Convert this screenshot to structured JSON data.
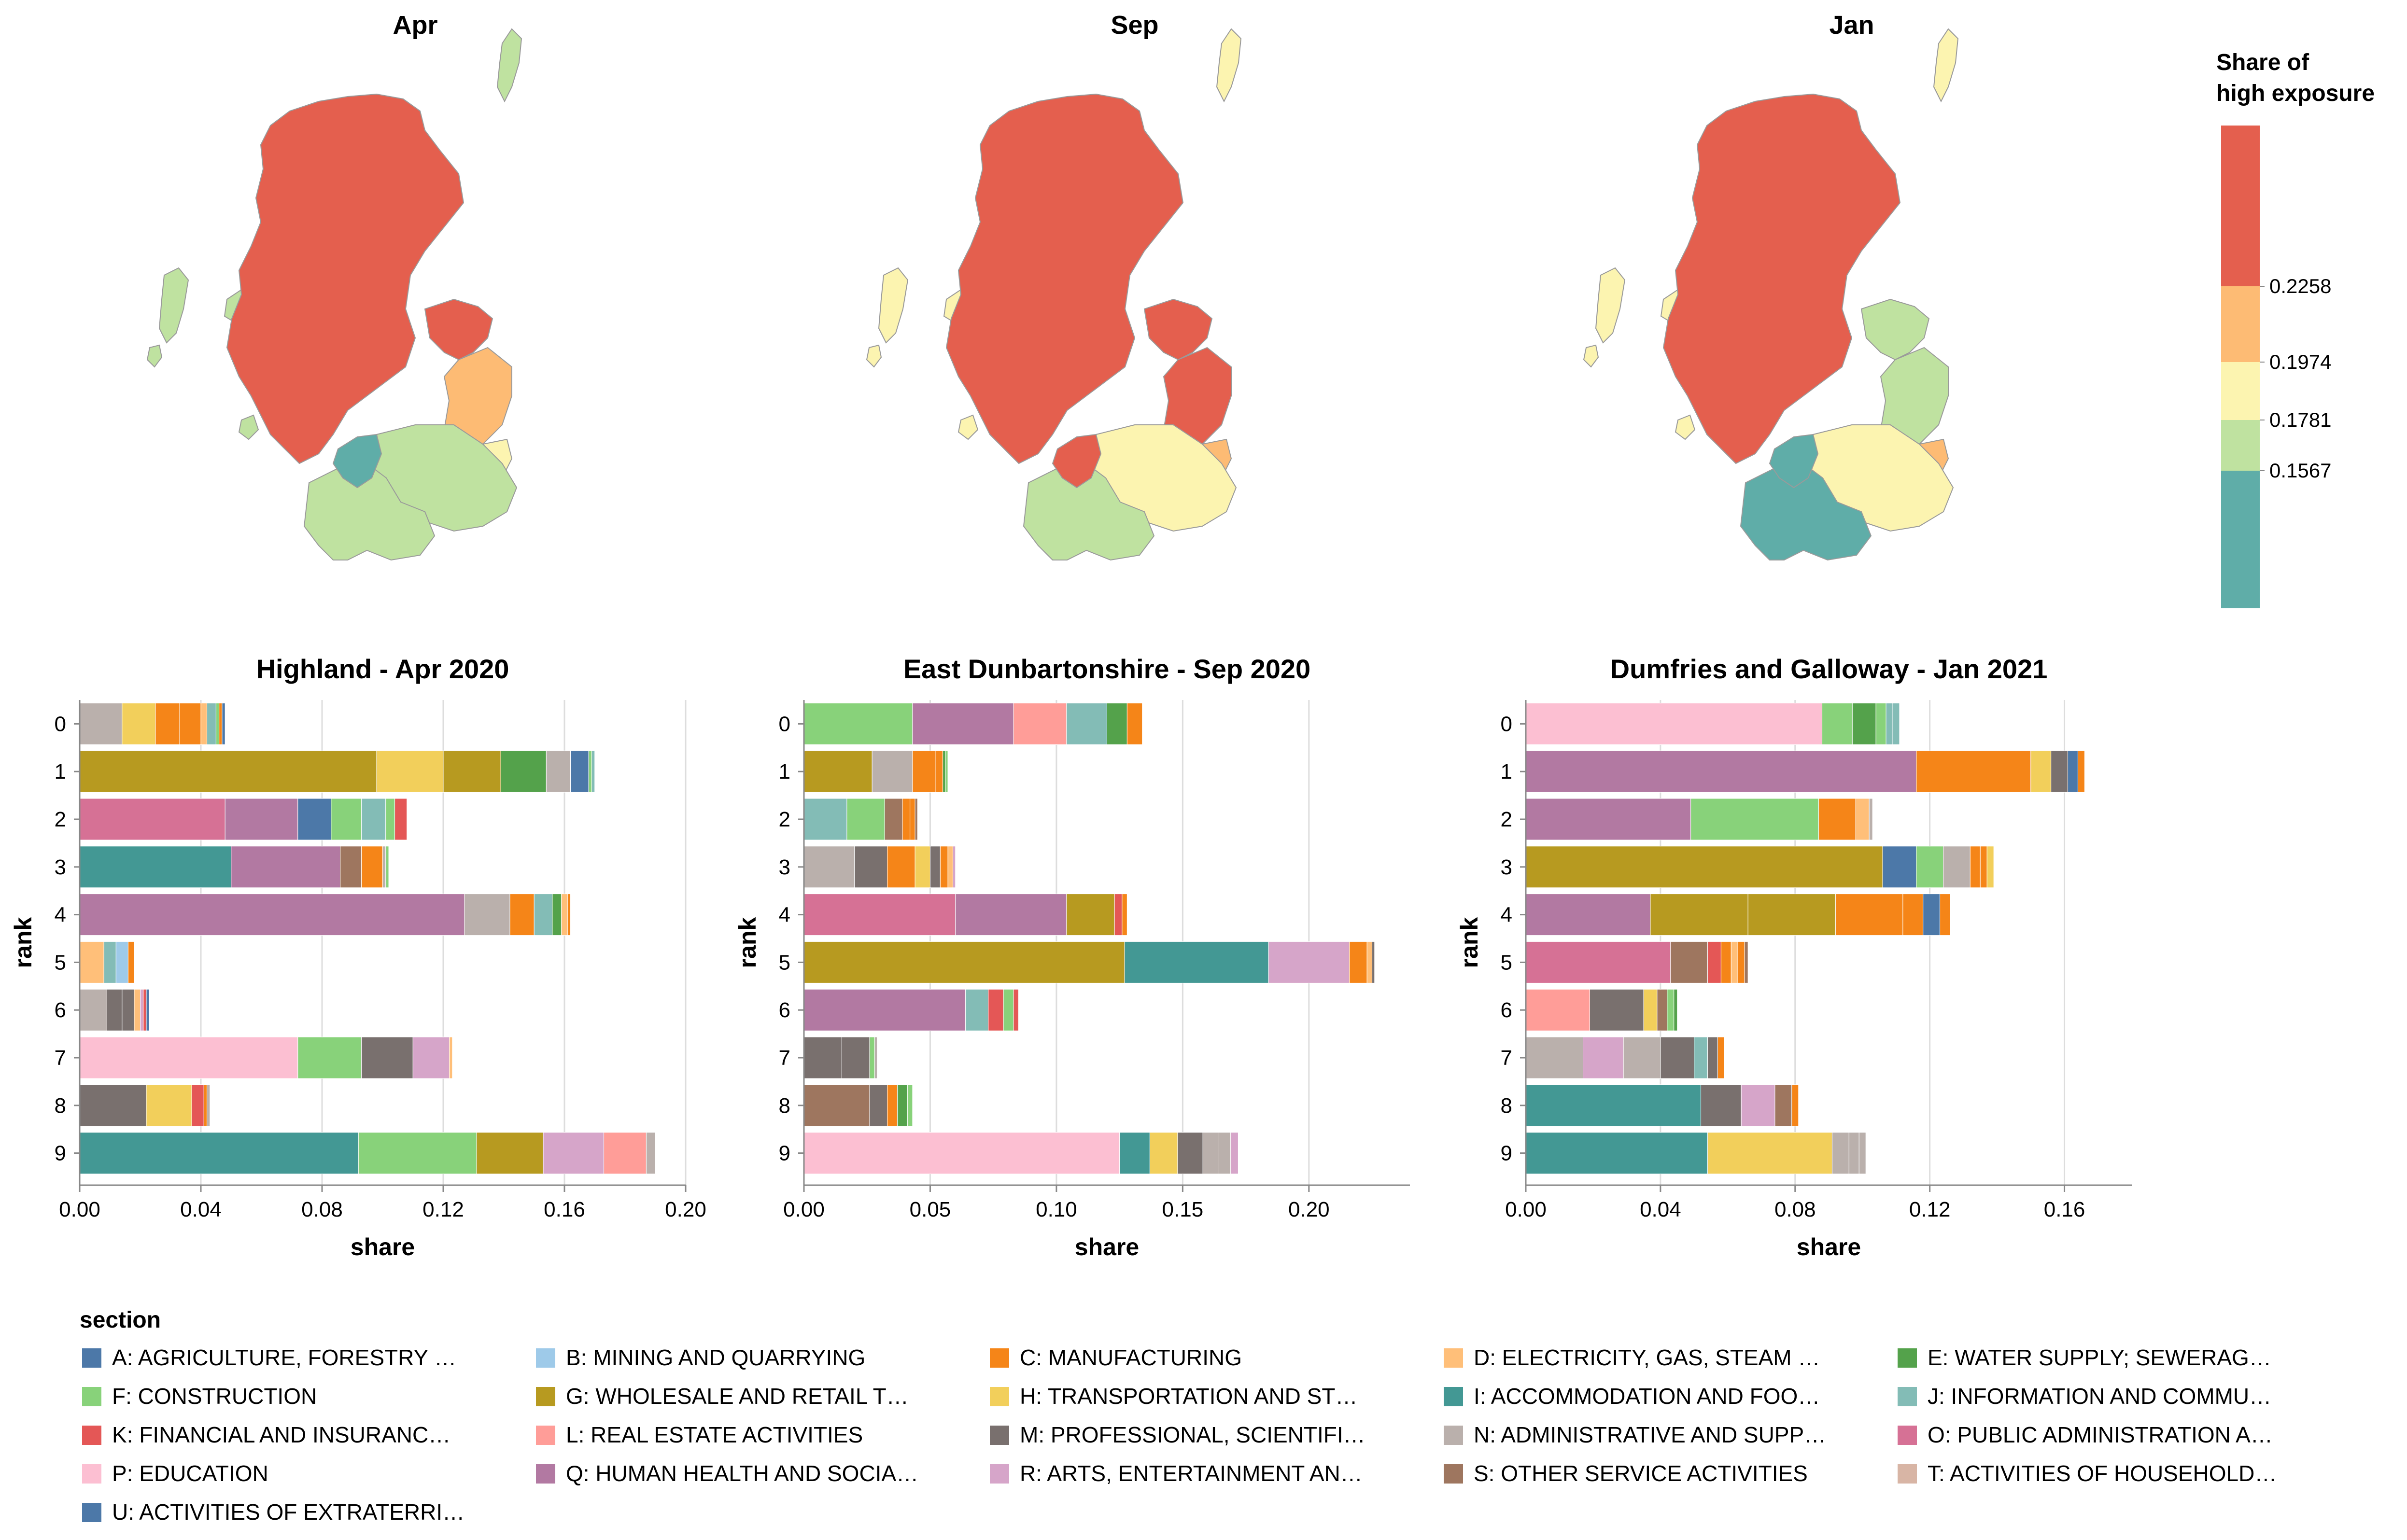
{
  "colors": {
    "A": "#4c78a8",
    "B": "#9ecae9",
    "C": "#f58518",
    "D": "#ffbf79",
    "E": "#54a24b",
    "F": "#88d27a",
    "G": "#b79a20",
    "H": "#f2cf5b",
    "I": "#439894",
    "J": "#83bcb6",
    "K": "#e45756",
    "L": "#ff9d98",
    "M": "#79706e",
    "N": "#bab0ac",
    "O": "#d67195",
    "P": "#fcbfd2",
    "Q": "#b279a2",
    "R": "#d6a5c9",
    "S": "#9e765f",
    "T": "#d8b5a5",
    "U": "#4c78a8",
    "map_grey": "#9a9a9a",
    "grid": "#dddddd",
    "axis": "#888888"
  },
  "maps": [
    {
      "title": "Apr",
      "palette": [
        "#e45f4e",
        "#e45f4e",
        "#fdbb74",
        "#fcf4b0",
        "#bfe2a0",
        "#bfe2a0",
        "#5fada8"
      ]
    },
    {
      "title": "Sep",
      "palette": [
        "#e45f4e",
        "#e45f4e",
        "#e45f4e",
        "#fdbb74",
        "#fcf4b0",
        "#bfe2a0",
        "#e45f4e"
      ]
    },
    {
      "title": "Jan",
      "palette": [
        "#e45f4e",
        "#bfe2a0",
        "#bfe2a0",
        "#fdbb74",
        "#fcf4b0",
        "#5fada8",
        "#5fada8"
      ]
    }
  ],
  "legend_color": {
    "title_lines": [
      "Share of",
      "high exposure"
    ],
    "bins": [
      "#e45f4e",
      "#fdbb74",
      "#fcf4b0",
      "#bfe2a0",
      "#5fada8"
    ],
    "labels": [
      "0.2258",
      "0.1974",
      "0.1781",
      "0.1567"
    ]
  },
  "legend_section": {
    "title": "section",
    "items": [
      {
        "key": "A",
        "label": "A: AGRICULTURE, FORESTRY …"
      },
      {
        "key": "B",
        "label": "B: MINING AND QUARRYING"
      },
      {
        "key": "C",
        "label": "C: MANUFACTURING"
      },
      {
        "key": "D",
        "label": "D: ELECTRICITY, GAS, STEAM …"
      },
      {
        "key": "E",
        "label": "E: WATER SUPPLY; SEWERAG…"
      },
      {
        "key": "F",
        "label": "F: CONSTRUCTION"
      },
      {
        "key": "G",
        "label": "G: WHOLESALE AND RETAIL T…"
      },
      {
        "key": "H",
        "label": "H: TRANSPORTATION AND ST…"
      },
      {
        "key": "I",
        "label": "I: ACCOMMODATION AND FOO…"
      },
      {
        "key": "J",
        "label": "J: INFORMATION AND COMMU…"
      },
      {
        "key": "K",
        "label": "K: FINANCIAL AND INSURANC…"
      },
      {
        "key": "L",
        "label": "L: REAL ESTATE ACTIVITIES"
      },
      {
        "key": "M",
        "label": "M: PROFESSIONAL, SCIENTIFI…"
      },
      {
        "key": "N",
        "label": "N: ADMINISTRATIVE AND SUPP…"
      },
      {
        "key": "O",
        "label": "O: PUBLIC ADMINISTRATION A…"
      },
      {
        "key": "P",
        "label": "P: EDUCATION"
      },
      {
        "key": "Q",
        "label": "Q: HUMAN HEALTH AND SOCIA…"
      },
      {
        "key": "R",
        "label": "R: ARTS, ENTERTAINMENT AN…"
      },
      {
        "key": "S",
        "label": "S: OTHER SERVICE ACTIVITIES"
      },
      {
        "key": "T",
        "label": "T: ACTIVITIES OF HOUSEHOLD…"
      },
      {
        "key": "U",
        "label": "U: ACTIVITIES OF EXTRATERRI…"
      }
    ]
  },
  "chart_data": [
    {
      "type": "bar",
      "title": "Highland - Apr 2020",
      "xlabel": "share",
      "ylabel": "rank",
      "xlim": [
        0,
        0.2
      ],
      "xticks": [
        0,
        0.04,
        0.08,
        0.12,
        0.16,
        0.2
      ],
      "xtick_labels": [
        "0.00",
        "0.04",
        "0.08",
        "0.12",
        "0.16",
        "0.20"
      ],
      "categories": [
        "0",
        "1",
        "2",
        "3",
        "4",
        "5",
        "6",
        "7",
        "8",
        "9"
      ],
      "rows": [
        [
          [
            "N",
            0.014
          ],
          [
            "H",
            0.011
          ],
          [
            "C",
            0.008
          ],
          [
            "C",
            0.007
          ],
          [
            "D",
            0.002
          ],
          [
            "J",
            0.003
          ],
          [
            "F",
            0.001
          ],
          [
            "C",
            0.001
          ],
          [
            "A",
            0.001
          ]
        ],
        [
          [
            "G",
            0.098
          ],
          [
            "H",
            0.022
          ],
          [
            "G",
            0.019
          ],
          [
            "E",
            0.015
          ],
          [
            "N",
            0.008
          ],
          [
            "A",
            0.006
          ],
          [
            "F",
            0.001
          ],
          [
            "J",
            0.001
          ]
        ],
        [
          [
            "O",
            0.048
          ],
          [
            "Q",
            0.024
          ],
          [
            "A",
            0.011
          ],
          [
            "F",
            0.01
          ],
          [
            "J",
            0.008
          ],
          [
            "F",
            0.003
          ],
          [
            "K",
            0.004
          ]
        ],
        [
          [
            "I",
            0.05
          ],
          [
            "Q",
            0.036
          ],
          [
            "S",
            0.007
          ],
          [
            "C",
            0.007
          ],
          [
            "N",
            0.001
          ],
          [
            "F",
            0.001
          ]
        ],
        [
          [
            "Q",
            0.127
          ],
          [
            "N",
            0.015
          ],
          [
            "C",
            0.008
          ],
          [
            "J",
            0.006
          ],
          [
            "E",
            0.003
          ],
          [
            "D",
            0.002
          ],
          [
            "C",
            0.001
          ]
        ],
        [
          [
            "D",
            0.008
          ],
          [
            "J",
            0.004
          ],
          [
            "B",
            0.004
          ],
          [
            "C",
            0.002
          ]
        ],
        [
          [
            "N",
            0.009
          ],
          [
            "M",
            0.005
          ],
          [
            "M",
            0.004
          ],
          [
            "D",
            0.002
          ],
          [
            "R",
            0.001
          ],
          [
            "K",
            0.001
          ],
          [
            "A",
            0.001
          ]
        ],
        [
          [
            "P",
            0.072
          ],
          [
            "F",
            0.021
          ],
          [
            "M",
            0.017
          ],
          [
            "R",
            0.012
          ],
          [
            "D",
            0.001
          ]
        ],
        [
          [
            "M",
            0.022
          ],
          [
            "H",
            0.015
          ],
          [
            "K",
            0.004
          ],
          [
            "C",
            0.001
          ],
          [
            "N",
            0.001
          ]
        ],
        [
          [
            "I",
            0.092
          ],
          [
            "F",
            0.039
          ],
          [
            "G",
            0.022
          ],
          [
            "R",
            0.02
          ],
          [
            "L",
            0.014
          ],
          [
            "N",
            0.003
          ]
        ]
      ]
    },
    {
      "type": "bar",
      "title": "East Dunbartonshire - Sep 2020",
      "xlabel": "share",
      "ylabel": "rank",
      "xlim": [
        0,
        0.24
      ],
      "xticks": [
        0,
        0.05,
        0.1,
        0.15,
        0.2
      ],
      "xtick_labels": [
        "0.00",
        "0.05",
        "0.10",
        "0.15",
        "0.20"
      ],
      "categories": [
        "0",
        "1",
        "2",
        "3",
        "4",
        "5",
        "6",
        "7",
        "8",
        "9"
      ],
      "rows": [
        [
          [
            "F",
            0.043
          ],
          [
            "Q",
            0.04
          ],
          [
            "L",
            0.021
          ],
          [
            "J",
            0.016
          ],
          [
            "E",
            0.008
          ],
          [
            "C",
            0.006
          ]
        ],
        [
          [
            "G",
            0.027
          ],
          [
            "N",
            0.016
          ],
          [
            "C",
            0.009
          ],
          [
            "C",
            0.003
          ],
          [
            "E",
            0.001
          ],
          [
            "F",
            0.001
          ]
        ],
        [
          [
            "J",
            0.017
          ],
          [
            "F",
            0.015
          ],
          [
            "S",
            0.007
          ],
          [
            "C",
            0.003
          ],
          [
            "C",
            0.002
          ],
          [
            "S",
            0.001
          ]
        ],
        [
          [
            "N",
            0.02
          ],
          [
            "M",
            0.013
          ],
          [
            "C",
            0.011
          ],
          [
            "H",
            0.006
          ],
          [
            "M",
            0.004
          ],
          [
            "C",
            0.003
          ],
          [
            "D",
            0.002
          ],
          [
            "R",
            0.001
          ]
        ],
        [
          [
            "O",
            0.06
          ],
          [
            "Q",
            0.044
          ],
          [
            "G",
            0.019
          ],
          [
            "K",
            0.003
          ],
          [
            "C",
            0.002
          ]
        ],
        [
          [
            "G",
            0.127
          ],
          [
            "I",
            0.057
          ],
          [
            "R",
            0.032
          ],
          [
            "C",
            0.007
          ],
          [
            "D",
            0.002
          ],
          [
            "M",
            0.001
          ]
        ],
        [
          [
            "Q",
            0.064
          ],
          [
            "J",
            0.009
          ],
          [
            "K",
            0.006
          ],
          [
            "F",
            0.004
          ],
          [
            "K",
            0.002
          ]
        ],
        [
          [
            "M",
            0.015
          ],
          [
            "M",
            0.011
          ],
          [
            "F",
            0.002
          ],
          [
            "N",
            0.001
          ]
        ],
        [
          [
            "S",
            0.026
          ],
          [
            "M",
            0.007
          ],
          [
            "C",
            0.004
          ],
          [
            "E",
            0.004
          ],
          [
            "F",
            0.002
          ]
        ],
        [
          [
            "P",
            0.125
          ],
          [
            "I",
            0.012
          ],
          [
            "H",
            0.011
          ],
          [
            "M",
            0.01
          ],
          [
            "N",
            0.006
          ],
          [
            "N",
            0.005
          ],
          [
            "R",
            0.003
          ]
        ]
      ]
    },
    {
      "type": "bar",
      "title": "Dumfries and Galloway - Jan 2021",
      "xlabel": "share",
      "ylabel": "rank",
      "xlim": [
        0,
        0.18
      ],
      "xticks": [
        0,
        0.04,
        0.08,
        0.12,
        0.16
      ],
      "xtick_labels": [
        "0.00",
        "0.04",
        "0.08",
        "0.12",
        "0.16"
      ],
      "categories": [
        "0",
        "1",
        "2",
        "3",
        "4",
        "5",
        "6",
        "7",
        "8",
        "9"
      ],
      "rows": [
        [
          [
            "P",
            0.088
          ],
          [
            "F",
            0.009
          ],
          [
            "E",
            0.007
          ],
          [
            "F",
            0.003
          ],
          [
            "J",
            0.002
          ],
          [
            "J",
            0.002
          ]
        ],
        [
          [
            "Q",
            0.116
          ],
          [
            "C",
            0.034
          ],
          [
            "H",
            0.006
          ],
          [
            "M",
            0.005
          ],
          [
            "A",
            0.003
          ],
          [
            "C",
            0.002
          ]
        ],
        [
          [
            "Q",
            0.049
          ],
          [
            "F",
            0.038
          ],
          [
            "C",
            0.011
          ],
          [
            "D",
            0.004
          ],
          [
            "N",
            0.001
          ]
        ],
        [
          [
            "G",
            0.106
          ],
          [
            "A",
            0.01
          ],
          [
            "F",
            0.008
          ],
          [
            "N",
            0.008
          ],
          [
            "C",
            0.003
          ],
          [
            "C",
            0.002
          ],
          [
            "H",
            0.002
          ]
        ],
        [
          [
            "Q",
            0.037
          ],
          [
            "G",
            0.029
          ],
          [
            "G",
            0.026
          ],
          [
            "C",
            0.02
          ],
          [
            "C",
            0.006
          ],
          [
            "A",
            0.005
          ],
          [
            "C",
            0.003
          ]
        ],
        [
          [
            "O",
            0.043
          ],
          [
            "S",
            0.011
          ],
          [
            "K",
            0.004
          ],
          [
            "C",
            0.003
          ],
          [
            "D",
            0.002
          ],
          [
            "C",
            0.002
          ],
          [
            "S",
            0.001
          ]
        ],
        [
          [
            "L",
            0.019
          ],
          [
            "M",
            0.016
          ],
          [
            "H",
            0.004
          ],
          [
            "S",
            0.003
          ],
          [
            "F",
            0.002
          ],
          [
            "E",
            0.001
          ]
        ],
        [
          [
            "N",
            0.017
          ],
          [
            "R",
            0.012
          ],
          [
            "N",
            0.011
          ],
          [
            "M",
            0.01
          ],
          [
            "J",
            0.004
          ],
          [
            "M",
            0.003
          ],
          [
            "C",
            0.002
          ]
        ],
        [
          [
            "I",
            0.052
          ],
          [
            "M",
            0.012
          ],
          [
            "R",
            0.01
          ],
          [
            "S",
            0.005
          ],
          [
            "C",
            0.002
          ]
        ],
        [
          [
            "I",
            0.054
          ],
          [
            "H",
            0.037
          ],
          [
            "N",
            0.005
          ],
          [
            "N",
            0.003
          ],
          [
            "N",
            0.002
          ]
        ]
      ]
    }
  ]
}
